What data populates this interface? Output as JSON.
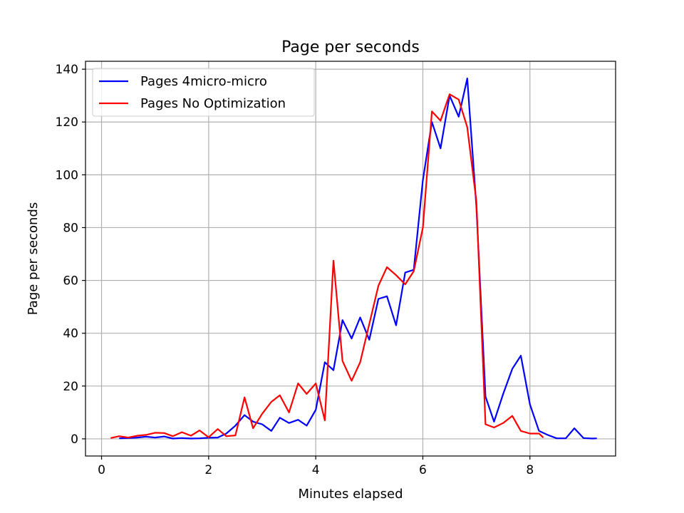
{
  "chart_data": {
    "type": "line",
    "title": "Page per seconds",
    "xlabel": "Minutes elapsed",
    "ylabel": "Page per seconds",
    "xlim": [
      -0.3,
      9.6
    ],
    "ylim": [
      -6.5,
      143
    ],
    "xticks": [
      0,
      2,
      4,
      6,
      8
    ],
    "yticks": [
      0,
      20,
      40,
      60,
      80,
      100,
      120,
      140
    ],
    "grid": true,
    "legend_position": "upper-left",
    "series": [
      {
        "name": "Pages 4micro-micro",
        "color": "#0000ff",
        "x": [
          0.33,
          0.5,
          0.67,
          0.83,
          1.0,
          1.17,
          1.33,
          1.5,
          1.67,
          1.83,
          2.0,
          2.17,
          2.33,
          2.5,
          2.67,
          2.83,
          3.0,
          3.17,
          3.33,
          3.5,
          3.67,
          3.83,
          4.0,
          4.17,
          4.33,
          4.5,
          4.67,
          4.83,
          5.0,
          5.17,
          5.33,
          5.5,
          5.67,
          5.83,
          6.0,
          6.17,
          6.33,
          6.5,
          6.67,
          6.83,
          7.0,
          7.17,
          7.33,
          7.5,
          7.67,
          7.83,
          8.0,
          8.17,
          8.33,
          8.5,
          8.67,
          8.83,
          9.0,
          9.17,
          9.25
        ],
        "y": [
          0.2,
          0.3,
          0.5,
          0.8,
          0.5,
          0.9,
          0.1,
          0.3,
          0.1,
          0.2,
          0.4,
          0.5,
          2.0,
          5.0,
          9.0,
          6.5,
          5.5,
          3.0,
          8.0,
          6.0,
          7.2,
          5.0,
          11.0,
          29.0,
          26.0,
          45.0,
          38.0,
          46.0,
          37.5,
          53.0,
          54.0,
          43.0,
          63.0,
          64.0,
          98.0,
          120.0,
          110.0,
          130.0,
          122.0,
          136.5,
          88.0,
          16.0,
          6.5,
          17.0,
          26.5,
          31.5,
          13.0,
          3.0,
          1.5,
          0.2,
          0.2,
          4.0,
          0.3,
          0.1,
          0.2
        ]
      },
      {
        "name": "Pages No Optimization",
        "color": "#ff0000",
        "x": [
          0.17,
          0.33,
          0.5,
          0.67,
          0.83,
          1.0,
          1.17,
          1.33,
          1.5,
          1.67,
          1.83,
          2.0,
          2.17,
          2.33,
          2.5,
          2.67,
          2.83,
          3.0,
          3.17,
          3.33,
          3.5,
          3.67,
          3.83,
          4.0,
          4.17,
          4.33,
          4.5,
          4.67,
          4.83,
          5.0,
          5.17,
          5.33,
          5.5,
          5.67,
          5.83,
          6.0,
          6.17,
          6.33,
          6.5,
          6.67,
          6.83,
          7.0,
          7.17,
          7.33,
          7.5,
          7.67,
          7.83,
          8.0,
          8.17,
          8.25
        ],
        "y": [
          0.3,
          1.0,
          0.5,
          1.2,
          1.5,
          2.3,
          2.2,
          1.0,
          2.5,
          1.2,
          3.2,
          0.6,
          3.7,
          1.0,
          1.3,
          15.7,
          4.0,
          9.5,
          14.0,
          16.5,
          10.0,
          21.0,
          17.0,
          21.0,
          7.0,
          67.5,
          29.5,
          22.0,
          29.0,
          43.5,
          58.0,
          65.0,
          62.0,
          58.5,
          63.5,
          80.0,
          124.0,
          120.5,
          130.5,
          128.5,
          118.0,
          90.0,
          5.5,
          4.3,
          6.0,
          8.7,
          3.0,
          2.0,
          2.0,
          0.5
        ]
      }
    ]
  }
}
